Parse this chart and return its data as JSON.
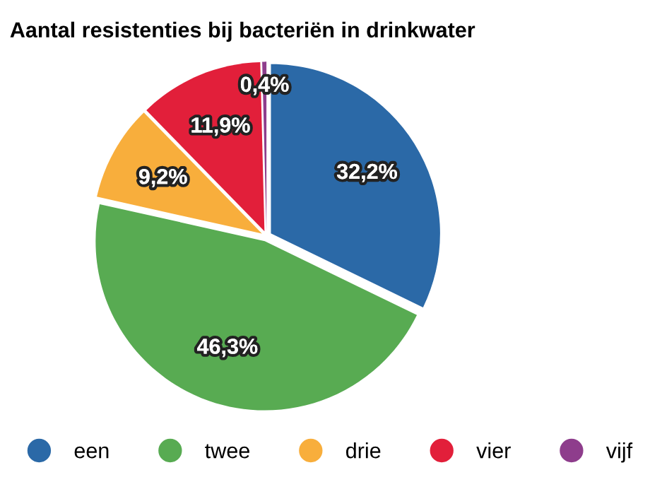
{
  "chart_data": {
    "type": "pie",
    "title": "Aantal resistenties bij bacteriën in drinkwater",
    "categories": [
      "een",
      "twee",
      "drie",
      "vier",
      "vijf"
    ],
    "values": [
      32.2,
      46.3,
      9.2,
      11.9,
      0.4
    ],
    "value_labels": [
      "32,2%",
      "46,3%",
      "9,2%",
      "11,9%",
      "0,4%"
    ],
    "colors": [
      "#2b69a7",
      "#58ab52",
      "#f8ae3c",
      "#e21f3a",
      "#8e3d8c"
    ],
    "legend": "bottom"
  }
}
